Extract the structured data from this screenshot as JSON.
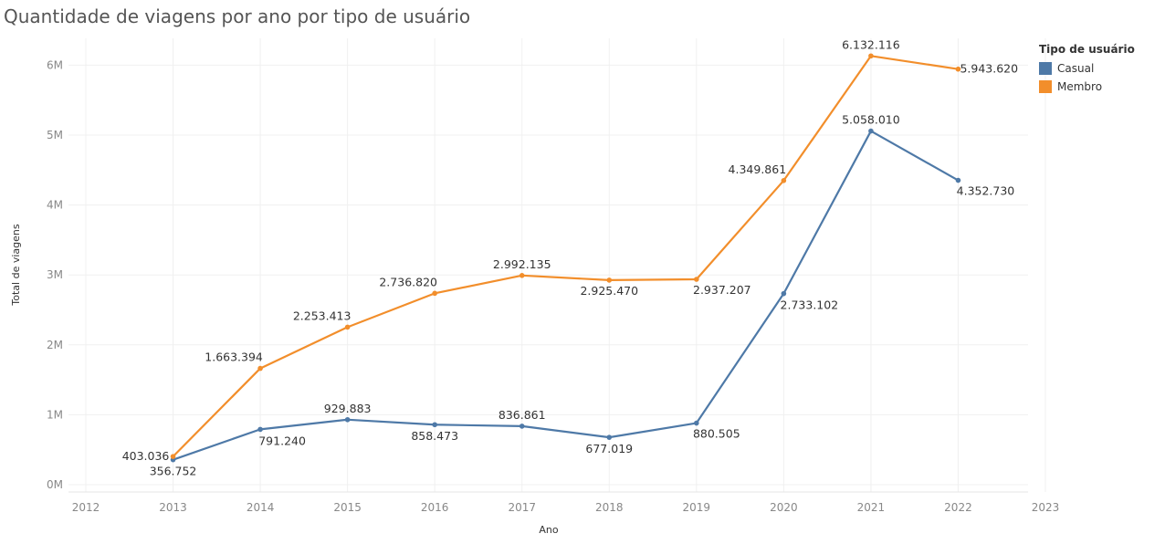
{
  "chart_data": {
    "type": "line",
    "title": "Quantidade de viagens por ano por tipo de usuário",
    "xlabel": "Ano",
    "ylabel": "Total de viagens",
    "x_ticks": [
      "2012",
      "2013",
      "2014",
      "2015",
      "2016",
      "2017",
      "2018",
      "2019",
      "2020",
      "2021",
      "2022",
      "2023"
    ],
    "y_ticks": [
      "0M",
      "1M",
      "2M",
      "3M",
      "4M",
      "5M",
      "6M"
    ],
    "xlim": [
      2012,
      2023
    ],
    "ylim": [
      0,
      6500000
    ],
    "grid": true,
    "legend_title": "Tipo de usuário",
    "legend_position": "top-right",
    "x": [
      2013,
      2014,
      2015,
      2016,
      2017,
      2018,
      2019,
      2020,
      2021,
      2022
    ],
    "series": [
      {
        "name": "Casual",
        "color": "#4e79a7",
        "values": [
          356752,
          791240,
          929883,
          858473,
          836861,
          677019,
          880505,
          2733102,
          5058010,
          4352730
        ],
        "labels": [
          "356.752",
          "791.240",
          "929.883",
          "858.473",
          "836.861",
          "677.019",
          "880.505",
          "2.733.102",
          "5.058.010",
          "4.352.730"
        ]
      },
      {
        "name": "Membro",
        "color": "#f28e2b",
        "values": [
          403036,
          1663394,
          2253413,
          2736820,
          2992135,
          2925470,
          2937207,
          4349861,
          6132116,
          5943620
        ],
        "labels": [
          "403.036",
          "1.663.394",
          "2.253.413",
          "2.736.820",
          "2.992.135",
          "2.925.470",
          "2.937.207",
          "4.349.861",
          "6.132.116",
          "5.943.620"
        ]
      }
    ]
  }
}
